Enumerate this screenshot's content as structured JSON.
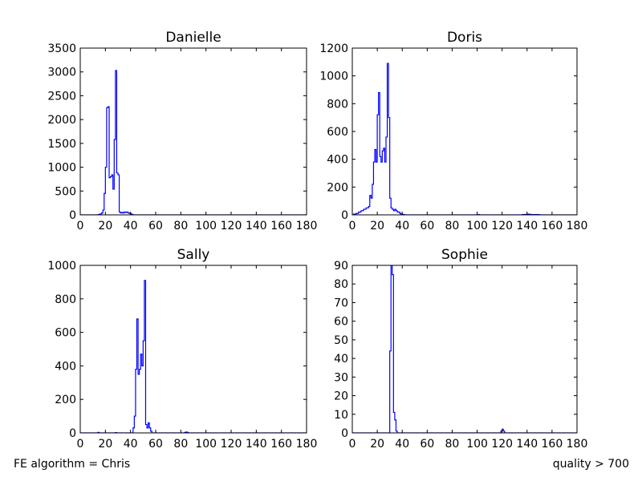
{
  "footer": {
    "left": "FE algorithm = Chris",
    "right": "quality > 700"
  },
  "style": {
    "line_color": "#0000ff",
    "axis_color": "#000000"
  },
  "chart_data": [
    {
      "type": "line",
      "title": "Danielle",
      "xlim": [
        0,
        180
      ],
      "ylim": [
        0,
        3500
      ],
      "xticks": [
        0,
        20,
        40,
        60,
        80,
        100,
        120,
        140,
        160,
        180
      ],
      "yticks": [
        0,
        500,
        1000,
        1500,
        2000,
        2500,
        3000,
        3500
      ],
      "series": [
        {
          "x": [
            0,
            14,
            15,
            16,
            17,
            18,
            19,
            20,
            21,
            22,
            23,
            24,
            25,
            26,
            27,
            28,
            29,
            30,
            31,
            32,
            33,
            34,
            35,
            36,
            37,
            38,
            39,
            40,
            41,
            42,
            180
          ],
          "y": [
            0,
            5,
            10,
            20,
            40,
            100,
            450,
            1000,
            2250,
            2270,
            780,
            800,
            840,
            540,
            1580,
            3030,
            880,
            840,
            60,
            40,
            50,
            40,
            60,
            50,
            60,
            40,
            30,
            20,
            10,
            0,
            0
          ]
        }
      ]
    },
    {
      "type": "line",
      "title": "Doris",
      "xlim": [
        0,
        180
      ],
      "ylim": [
        0,
        1200
      ],
      "xticks": [
        0,
        20,
        40,
        60,
        80,
        100,
        120,
        140,
        160,
        180
      ],
      "yticks": [
        0,
        200,
        400,
        600,
        800,
        1000,
        1200
      ],
      "series": [
        {
          "x": [
            0,
            1,
            3,
            5,
            7,
            9,
            11,
            13,
            14,
            15,
            16,
            17,
            18,
            19,
            20,
            21,
            22,
            23,
            24,
            25,
            26,
            27,
            28,
            29,
            30,
            31,
            32,
            33,
            34,
            35,
            36,
            37,
            38,
            39,
            40,
            41,
            42,
            100,
            101,
            102,
            135,
            136,
            138,
            140,
            142,
            144,
            150,
            180
          ],
          "y": [
            0,
            5,
            10,
            20,
            30,
            40,
            50,
            60,
            140,
            120,
            220,
            380,
            470,
            380,
            720,
            880,
            420,
            380,
            460,
            480,
            380,
            560,
            1090,
            700,
            120,
            50,
            40,
            30,
            40,
            30,
            20,
            20,
            10,
            5,
            3,
            2,
            0,
            0,
            2,
            0,
            0,
            2,
            3,
            5,
            3,
            2,
            0,
            0
          ]
        }
      ]
    },
    {
      "type": "line",
      "title": "Sally",
      "xlim": [
        0,
        180
      ],
      "ylim": [
        0,
        1000
      ],
      "xticks": [
        0,
        20,
        40,
        60,
        80,
        100,
        120,
        140,
        160,
        180
      ],
      "yticks": [
        0,
        200,
        400,
        600,
        800,
        1000
      ],
      "series": [
        {
          "x": [
            0,
            13,
            14,
            15,
            27,
            28,
            29,
            41,
            42,
            43,
            44,
            45,
            46,
            47,
            48,
            49,
            50,
            51,
            52,
            53,
            54,
            55,
            56,
            57,
            58,
            82,
            83,
            84,
            85,
            86,
            180
          ],
          "y": [
            0,
            0,
            3,
            0,
            0,
            2,
            0,
            0,
            30,
            100,
            380,
            680,
            350,
            380,
            470,
            400,
            550,
            910,
            50,
            30,
            60,
            30,
            10,
            0,
            0,
            0,
            3,
            5,
            3,
            0,
            0
          ]
        }
      ]
    },
    {
      "type": "line",
      "title": "Sophie",
      "xlim": [
        0,
        180
      ],
      "ylim": [
        0,
        90
      ],
      "xticks": [
        0,
        20,
        40,
        60,
        80,
        100,
        120,
        140,
        160,
        180
      ],
      "yticks": [
        0,
        10,
        20,
        30,
        40,
        50,
        60,
        70,
        80,
        90
      ],
      "series": [
        {
          "x": [
            0,
            29,
            30,
            31,
            32,
            33,
            34,
            35,
            36,
            37,
            118,
            119,
            120,
            121,
            122,
            180
          ],
          "y": [
            0,
            0,
            44,
            90,
            85,
            11,
            7,
            1,
            0,
            0,
            0,
            1,
            2,
            1,
            0,
            0
          ]
        }
      ]
    }
  ]
}
